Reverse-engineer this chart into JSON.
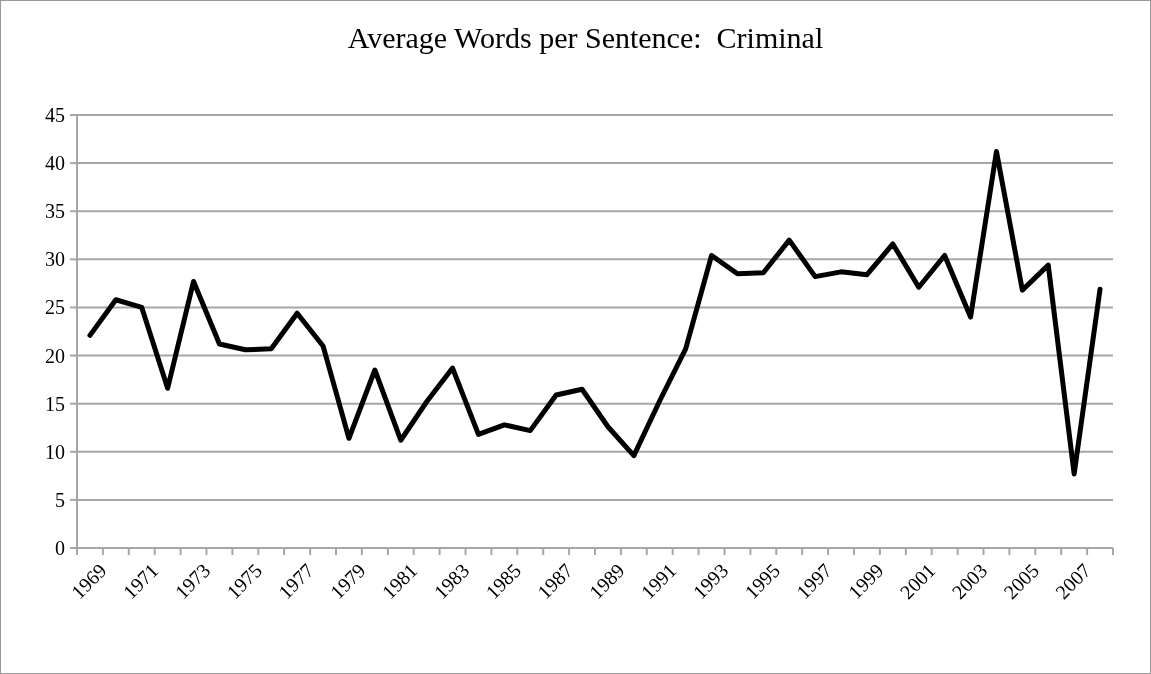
{
  "chart_data": {
    "type": "line",
    "title": "Average Words per Sentence:  Criminal",
    "categories": [
      "1969",
      null,
      "1971",
      null,
      "1973",
      null,
      "1975",
      null,
      "1977",
      null,
      "1979",
      null,
      "1981",
      null,
      "1983",
      null,
      "1985",
      null,
      "1987",
      null,
      "1989",
      null,
      "1991",
      null,
      "1993",
      null,
      "1995",
      null,
      "1997",
      null,
      "1999",
      null,
      "2001",
      null,
      "2003",
      null,
      "2005",
      null,
      "2007",
      null
    ],
    "series": [
      {
        "color": "#000000",
        "values": [
          22.1,
          25.8,
          25.0,
          16.6,
          27.7,
          21.2,
          20.6,
          20.7,
          24.4,
          21.0,
          11.4,
          18.5,
          11.2,
          15.2,
          18.7,
          11.8,
          12.8,
          12.2,
          15.9,
          16.5,
          12.6,
          9.6,
          15.3,
          20.7,
          30.4,
          28.5,
          28.6,
          32.0,
          28.2,
          28.7,
          28.4,
          31.6,
          27.1,
          30.4,
          24.0,
          41.2,
          26.8,
          29.4,
          7.7,
          26.9
        ]
      }
    ],
    "ylim": [
      0,
      45
    ],
    "yticks": [
      0,
      5,
      10,
      15,
      20,
      25,
      30,
      35,
      40,
      45
    ],
    "grid": "y",
    "marker": "none",
    "line_style": "solid"
  }
}
